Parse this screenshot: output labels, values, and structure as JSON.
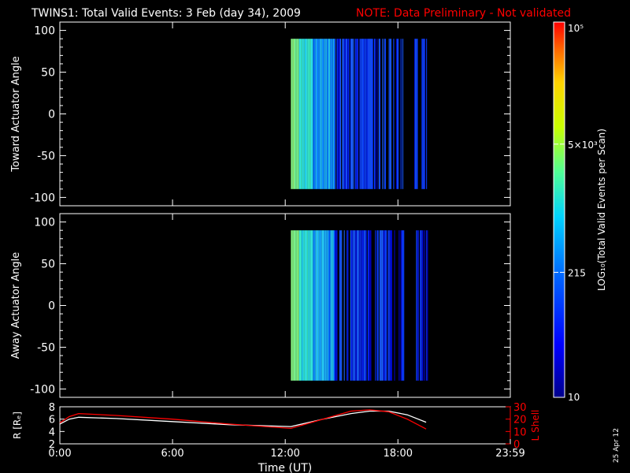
{
  "header": {
    "title": "TWINS1: Total Valid Events:  3 Feb (day  34), 2009",
    "note": "NOTE: Data Preliminary - Not validated",
    "note_color": "#ff0000"
  },
  "datestamp": "25 Apr 12",
  "chart_data": [
    {
      "type": "heatmap",
      "ylabel": "Toward Actuator Angle",
      "ylim": [
        -110,
        110
      ],
      "yticks": [
        100,
        50,
        0,
        -50,
        -100
      ],
      "data_x_range_hours": [
        12.3,
        19.6
      ],
      "data_y_range": [
        -90,
        90
      ],
      "grid": false
    },
    {
      "type": "heatmap",
      "ylabel": "Away Actuator Angle",
      "ylim": [
        -110,
        110
      ],
      "yticks": [
        100,
        50,
        0,
        -50,
        -100
      ],
      "data_x_range_hours": [
        12.3,
        19.6
      ],
      "data_y_range": [
        -90,
        90
      ],
      "grid": false
    },
    {
      "type": "line",
      "ylabel": "R [Rₑ]",
      "y2label": "L Shell",
      "ylim": [
        2,
        8
      ],
      "yticks": [
        2,
        4,
        6,
        8
      ],
      "y2lim": [
        0,
        30
      ],
      "y2ticks": [
        0,
        10,
        20,
        30
      ],
      "series": [
        {
          "color": "#ffffff",
          "axis": "left",
          "x": [
            0,
            0.5,
            1.0,
            3,
            6,
            9,
            12.3,
            14.0,
            15.5,
            16.5,
            17.5,
            18.5,
            19.5
          ],
          "y": [
            5.2,
            6.0,
            6.3,
            6.1,
            5.6,
            5.1,
            4.8,
            6.0,
            6.9,
            7.3,
            7.3,
            6.7,
            5.5
          ]
        },
        {
          "color": "#ff0000",
          "axis": "right",
          "x": [
            0,
            0.5,
            1.0,
            3,
            6,
            9,
            12.3,
            14.0,
            15.5,
            16.5,
            17.5,
            18.5,
            19.5
          ],
          "y": [
            17,
            22,
            24.5,
            23,
            20,
            16,
            12.5,
            20,
            26.5,
            27.5,
            26,
            20,
            12
          ]
        }
      ]
    }
  ],
  "x_axis": {
    "label": "Time (UT)",
    "xlim_hours": [
      0,
      23.983
    ],
    "ticks": [
      {
        "h": 0,
        "label": "0:00"
      },
      {
        "h": 6,
        "label": "6:00"
      },
      {
        "h": 12,
        "label": "12:00"
      },
      {
        "h": 18,
        "label": "18:00"
      },
      {
        "h": 23.983,
        "label": "23:59"
      }
    ]
  },
  "colorbar": {
    "label": "LOG₁₀(Total Valid Events per Scan)",
    "scale": "log",
    "range": [
      10,
      100000
    ],
    "ticks": [
      {
        "value": 100000,
        "label": "10⁵"
      },
      {
        "value": 5000,
        "label": "5×10³"
      },
      {
        "value": 215,
        "label": "215"
      },
      {
        "value": 10,
        "label": "10"
      }
    ]
  }
}
